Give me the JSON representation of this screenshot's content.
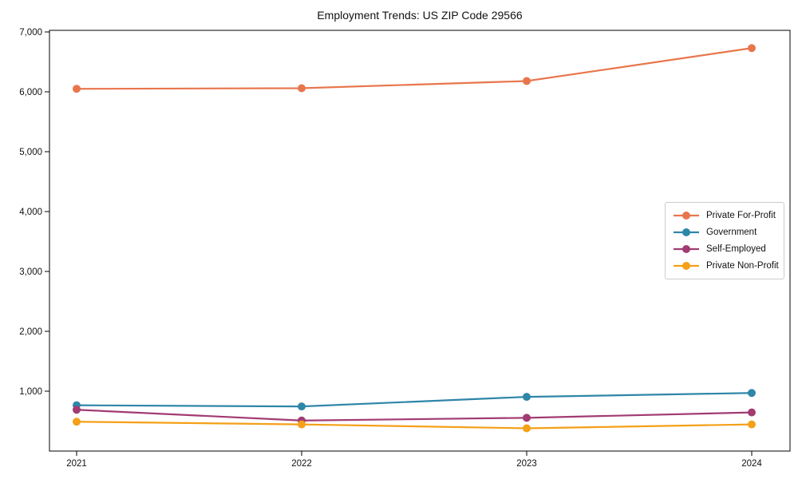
{
  "figure": {
    "title": "Employment Trends: US ZIP Code 29566"
  },
  "chart_data": {
    "type": "line",
    "title": "Employment Trends: US ZIP Code 29566",
    "x": [
      2021,
      2022,
      2023,
      2024
    ],
    "x_labels": [
      "2021",
      "2022",
      "2023",
      "2024"
    ],
    "series": [
      {
        "name": "Private For-Profit",
        "color": "#e8764c",
        "values": [
          6050,
          6060,
          6180,
          6730
        ]
      },
      {
        "name": "Government",
        "color": "#2e86a8",
        "values": [
          765,
          745,
          905,
          970
        ]
      },
      {
        "name": "Self-Employed",
        "color": "#a23b72",
        "values": [
          690,
          510,
          555,
          645
        ]
      },
      {
        "name": "Private Non-Profit",
        "color": "#f4a018",
        "values": [
          490,
          445,
          380,
          445
        ]
      }
    ],
    "ylim": [
      0,
      7000
    ],
    "yticks": [
      1000,
      2000,
      3000,
      4000,
      5000,
      6000,
      7000
    ],
    "ytick_labels": [
      "1,000",
      "2,000",
      "3,000",
      "4,000",
      "5,000",
      "6,000",
      "7,000"
    ],
    "legend_position": "center right",
    "grid": false,
    "marker": "circle",
    "axis_color": "#000000",
    "text_color": "#111111"
  }
}
